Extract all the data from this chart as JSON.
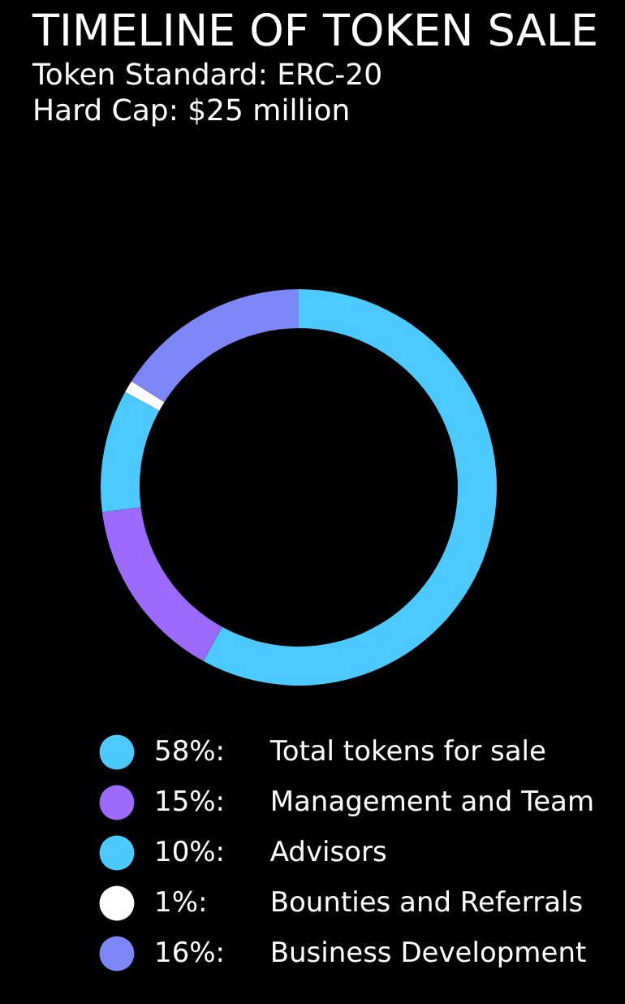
{
  "chart_data": {
    "type": "donut",
    "title": "TIMELINE OF TOKEN SALE",
    "subtitle": "Token Standard: ERC-20\nHard Cap: $25 million",
    "categories": [
      "Total tokens for sale",
      "Management and Team",
      "Advisors",
      "Bounties and Referrals",
      "Business Development"
    ],
    "values": [
      58,
      15,
      10,
      1,
      16
    ],
    "colors": [
      "#4cc9fe",
      "#9b6afa",
      "#4cc9fe",
      "#ffffff",
      "#7d86f7"
    ],
    "value_labels": [
      "58%:",
      "15%:",
      "10%:",
      "1%:",
      "16%:"
    ],
    "legend": "bottom"
  }
}
